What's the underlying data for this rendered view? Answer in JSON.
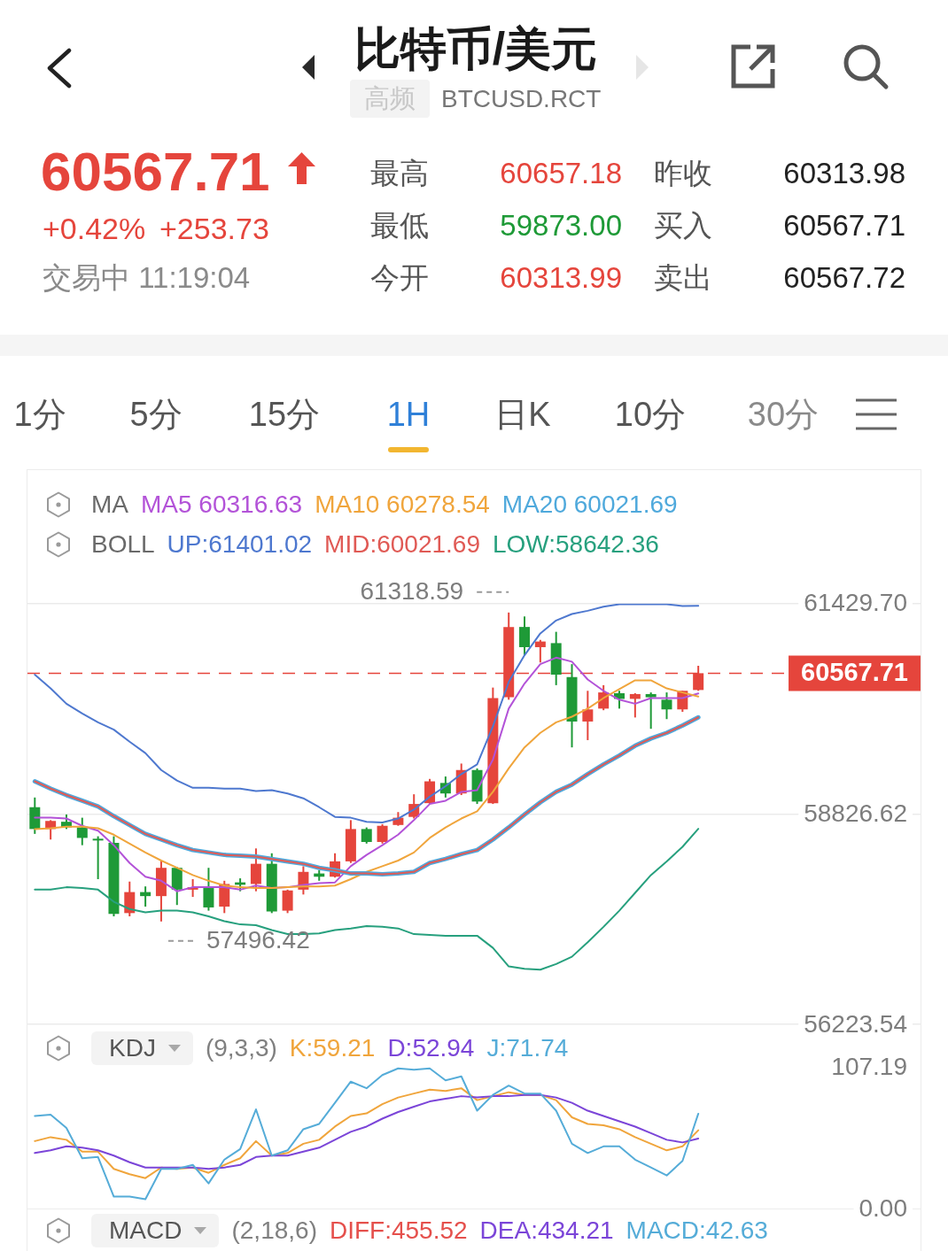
{
  "chart_data": [
    {
      "type": "other",
      "title": "比特币/美元",
      "subtitle": "BTCUSD.RCT",
      "annotations": [
        "高频",
        "60567.71",
        "+0.42%",
        "+253.73",
        "交易中 11:19:04",
        "最高",
        "60657.18",
        "最低",
        "59873.00",
        "今开",
        "60313.99",
        "昨收",
        "60313.98",
        "买入",
        "60567.71",
        "卖出",
        "60567.72",
        "1分",
        "5分",
        "15分",
        "1H",
        "日K",
        "10分",
        "30分"
      ]
    },
    {
      "type": "candlestick",
      "categories": [
        null,
        null,
        null,
        null,
        null,
        null,
        null,
        null,
        null,
        null,
        null,
        null,
        null,
        null,
        null,
        null,
        null,
        null,
        null,
        null,
        null,
        null,
        null,
        null,
        null,
        null,
        null,
        null,
        null,
        null,
        null,
        null,
        null,
        null,
        null,
        null,
        null,
        null,
        null,
        null,
        null,
        null,
        null
      ],
      "ohlc": [
        [
          58910,
          59030,
          58580,
          58640
        ],
        [
          58640,
          58750,
          58510,
          58740
        ],
        [
          58730,
          58820,
          58640,
          58660
        ],
        [
          58660,
          58780,
          58440,
          58530
        ],
        [
          58520,
          58550,
          58020,
          58500
        ],
        [
          58470,
          58550,
          57560,
          57590
        ],
        [
          57600,
          57990,
          57560,
          57860
        ],
        [
          57860,
          57930,
          57680,
          57810
        ],
        [
          57810,
          58250,
          57496.42,
          58160
        ],
        [
          58160,
          58170,
          57700,
          57890
        ],
        [
          57890,
          58020,
          57800,
          57920
        ],
        [
          57910,
          58160,
          57630,
          57670
        ],
        [
          57680,
          58000,
          57600,
          57960
        ],
        [
          57980,
          58030,
          57870,
          57950
        ],
        [
          57960,
          58400,
          57870,
          58210
        ],
        [
          58210,
          58340,
          57600,
          57620
        ],
        [
          57630,
          57890,
          57600,
          57880
        ],
        [
          57890,
          58180,
          57830,
          58110
        ],
        [
          58090,
          58130,
          58000,
          58050
        ],
        [
          58050,
          58340,
          58040,
          58240
        ],
        [
          58240,
          58750,
          58220,
          58640
        ],
        [
          58640,
          58660,
          58460,
          58480
        ],
        [
          58480,
          58700,
          58460,
          58680
        ],
        [
          58690,
          58850,
          58680,
          58780
        ],
        [
          58790,
          59070,
          58770,
          58950
        ],
        [
          58960,
          59260,
          58950,
          59230
        ],
        [
          59210,
          59290,
          59030,
          59080
        ],
        [
          59080,
          59450,
          59060,
          59370
        ],
        [
          59370,
          59390,
          58950,
          58980
        ],
        [
          58960,
          60390,
          58950,
          60260
        ],
        [
          60270,
          61318.59,
          60240,
          61140
        ],
        [
          61140,
          61270,
          60790,
          60890
        ],
        [
          60890,
          60980,
          60700,
          60960
        ],
        [
          60940,
          61080,
          60420,
          60550
        ],
        [
          60520,
          60680,
          59650,
          59970
        ],
        [
          59970,
          60350,
          59740,
          60120
        ],
        [
          60130,
          60420,
          60110,
          60330
        ],
        [
          60320,
          60350,
          60130,
          60250
        ],
        [
          60250,
          60320,
          60020,
          60310
        ],
        [
          60310,
          60330,
          59880,
          60270
        ],
        [
          60240,
          60330,
          60000,
          60120
        ],
        [
          60120,
          60350,
          60090,
          60350
        ],
        [
          60360,
          60660,
          60350,
          60567.71
        ]
      ],
      "colors": [
        "#1e9a37",
        "#e5453c",
        "#1e9a37",
        "#1e9a37",
        "#1e9a37",
        "#1e9a37",
        "#e5453c",
        "#1e9a37",
        "#e5453c",
        "#1e9a37",
        "#e5453c",
        "#1e9a37",
        "#e5453c",
        "#1e9a37",
        "#e5453c",
        "#1e9a37",
        "#e5453c",
        "#e5453c",
        "#1e9a37",
        "#e5453c",
        "#e5453c",
        "#1e9a37",
        "#e5453c",
        "#e5453c",
        "#e5453c",
        "#e5453c",
        "#1e9a37",
        "#e5453c",
        "#1e9a37",
        "#e5453c",
        "#e5453c",
        "#1e9a37",
        "#e5453c",
        "#1e9a37",
        "#1e9a37",
        "#e5453c",
        "#e5453c",
        "#1e9a37",
        "#e5453c",
        "#1e9a37",
        "#1e9a37",
        "#e5453c",
        "#e5453c"
      ],
      "series": [
        {
          "type": "line",
          "name": "MA5 60316.63",
          "color": "#b353d8",
          "values": [
            58780,
            58780,
            58770,
            58680,
            58620,
            58440,
            58220,
            58050,
            58000,
            57870,
            57920,
            57920,
            57920,
            57890,
            57940,
            57910,
            57920,
            57950,
            57970,
            57980,
            58180,
            58320,
            58440,
            58570,
            58750,
            58950,
            58990,
            59100,
            59120,
            59500,
            60130,
            60440,
            60680,
            60760,
            60710,
            60490,
            60350,
            60240,
            60190,
            60260,
            60260,
            60260,
            60316.63
          ]
        },
        {
          "type": "line",
          "name": "MA10 60278.54",
          "color": "#f0a53c",
          "values": [
            58640,
            58650,
            58670,
            58670,
            58650,
            58570,
            58460,
            58350,
            58250,
            58160,
            58070,
            58000,
            57940,
            57920,
            57910,
            57910,
            57920,
            57930,
            57930,
            57940,
            58020,
            58110,
            58180,
            58250,
            58350,
            58530,
            58660,
            58770,
            58860,
            59100,
            59390,
            59650,
            59830,
            59960,
            60030,
            60130,
            60260,
            60370,
            60480,
            60480,
            60380,
            60330,
            60278.54
          ]
        },
        {
          "type": "line",
          "name": "MA20 60021.69",
          "color": "#4fa9dc",
          "values": [
            59230,
            59140,
            59060,
            58990,
            58920,
            58800,
            58690,
            58580,
            58510,
            58440,
            58380,
            58350,
            58320,
            58310,
            58300,
            58270,
            58240,
            58210,
            58160,
            58130,
            58090,
            58090,
            58080,
            58090,
            58110,
            58220,
            58270,
            58330,
            58380,
            58510,
            58660,
            58820,
            58970,
            59100,
            59190,
            59320,
            59440,
            59550,
            59670,
            59760,
            59830,
            59920,
            60021.69
          ]
        },
        {
          "type": "line",
          "name": "UP:61401.02",
          "color": "#4e78cf",
          "values": [
            60550,
            60380,
            60190,
            60070,
            59960,
            59870,
            59720,
            59580,
            59370,
            59240,
            59150,
            59150,
            59140,
            59140,
            59110,
            59120,
            59080,
            59020,
            58910,
            58790,
            58780,
            58730,
            58720,
            58770,
            58880,
            59040,
            59170,
            59320,
            59440,
            59910,
            60460,
            60790,
            61060,
            61220,
            61300,
            61340,
            61390,
            61420,
            61420,
            61420,
            61420,
            61400,
            61401.02
          ]
        },
        {
          "type": "line",
          "name": "MID:60021.69",
          "color": "#e05a55",
          "values": [
            59230,
            59140,
            59060,
            58990,
            58920,
            58800,
            58690,
            58580,
            58510,
            58440,
            58380,
            58350,
            58320,
            58310,
            58300,
            58270,
            58240,
            58210,
            58160,
            58130,
            58090,
            58090,
            58080,
            58090,
            58110,
            58220,
            58270,
            58330,
            58380,
            58510,
            58660,
            58820,
            58970,
            59100,
            59190,
            59320,
            59440,
            59550,
            59670,
            59760,
            59830,
            59920,
            60021.69
          ]
        },
        {
          "type": "line",
          "name": "LOW:58642.36",
          "color": "#27a07e",
          "values": [
            57890,
            57890,
            57920,
            57910,
            57890,
            57740,
            57650,
            57610,
            57630,
            57630,
            57610,
            57560,
            57500,
            57460,
            57450,
            57390,
            57340,
            57340,
            57350,
            57390,
            57410,
            57440,
            57430,
            57410,
            57340,
            57330,
            57320,
            57320,
            57320,
            57170,
            56940,
            56910,
            56900,
            56970,
            57060,
            57240,
            57430,
            57630,
            57850,
            58070,
            58240,
            58420,
            58642.36
          ]
        }
      ],
      "ylim": [
        56223.54,
        61429.7
      ],
      "yticks": [
        {
          "value": 61429.7,
          "label": "61429.70"
        },
        58826.62,
        56223.54
      ],
      "grid": "y",
      "legend": "top",
      "ref_lines": [
        {
          "axis": "y",
          "value": 60567.71,
          "label": "60567.71",
          "color": "#e5453c",
          "line_style": "dashed"
        }
      ],
      "annotations": [
        "MA",
        "BOLL",
        "61318.59",
        "57496.42"
      ]
    },
    {
      "type": "line",
      "title": "KDJ",
      "subtitle": "(9,3,3)",
      "categories": [
        null,
        null,
        null,
        null,
        null,
        null,
        null,
        null,
        null,
        null,
        null,
        null,
        null,
        null,
        null,
        null,
        null,
        null,
        null,
        null,
        null,
        null,
        null,
        null,
        null,
        null,
        null,
        null,
        null,
        null,
        null,
        null,
        null,
        null,
        null,
        null,
        null,
        null,
        null,
        null,
        null,
        null,
        null
      ],
      "series": [
        {
          "name": "K:59.21",
          "color": "#f0a53c",
          "values": [
            51,
            54,
            52,
            43,
            43,
            30,
            26,
            23,
            31,
            30,
            31,
            27,
            33,
            38,
            51,
            40,
            42,
            49,
            52,
            62,
            70,
            72,
            79,
            84,
            87,
            90,
            89,
            91,
            82,
            85,
            88,
            86,
            86,
            82,
            69,
            64,
            63,
            60,
            54,
            49,
            44,
            47,
            59.21
          ]
        },
        {
          "name": "D:52.94",
          "color": "#7b45d8",
          "values": [
            42,
            44,
            47,
            46,
            44,
            40,
            35,
            31,
            31,
            31,
            31,
            30,
            31,
            33,
            39,
            40,
            40,
            43,
            46,
            52,
            58,
            62,
            68,
            73,
            77,
            81,
            83,
            85,
            84,
            85,
            85,
            86,
            86,
            84,
            80,
            74,
            70,
            66,
            62,
            57,
            52,
            50,
            52.94
          ]
        },
        {
          "name": "J:71.74",
          "color": "#55acd8",
          "values": [
            70,
            71,
            61,
            38,
            39,
            9,
            9,
            7,
            30,
            30,
            33,
            19,
            37,
            45,
            75,
            40,
            44,
            60,
            64,
            80,
            96,
            91,
            101,
            106,
            105,
            106,
            97,
            100,
            74,
            86,
            93,
            87,
            87,
            74,
            49,
            42,
            47,
            47,
            37,
            31,
            25,
            36,
            71.74
          ]
        }
      ],
      "ylim": [
        0,
        107.19
      ],
      "yticks": [
        107.19,
        {
          "value": 0,
          "label": "0.00"
        }
      ],
      "legend": "top"
    },
    {
      "type": "other",
      "title": "MACD",
      "subtitle": "(2,18,6)",
      "annotations": [
        "DIFF:455.52",
        "DEA:434.21",
        "MACD:42.63"
      ]
    }
  ]
}
